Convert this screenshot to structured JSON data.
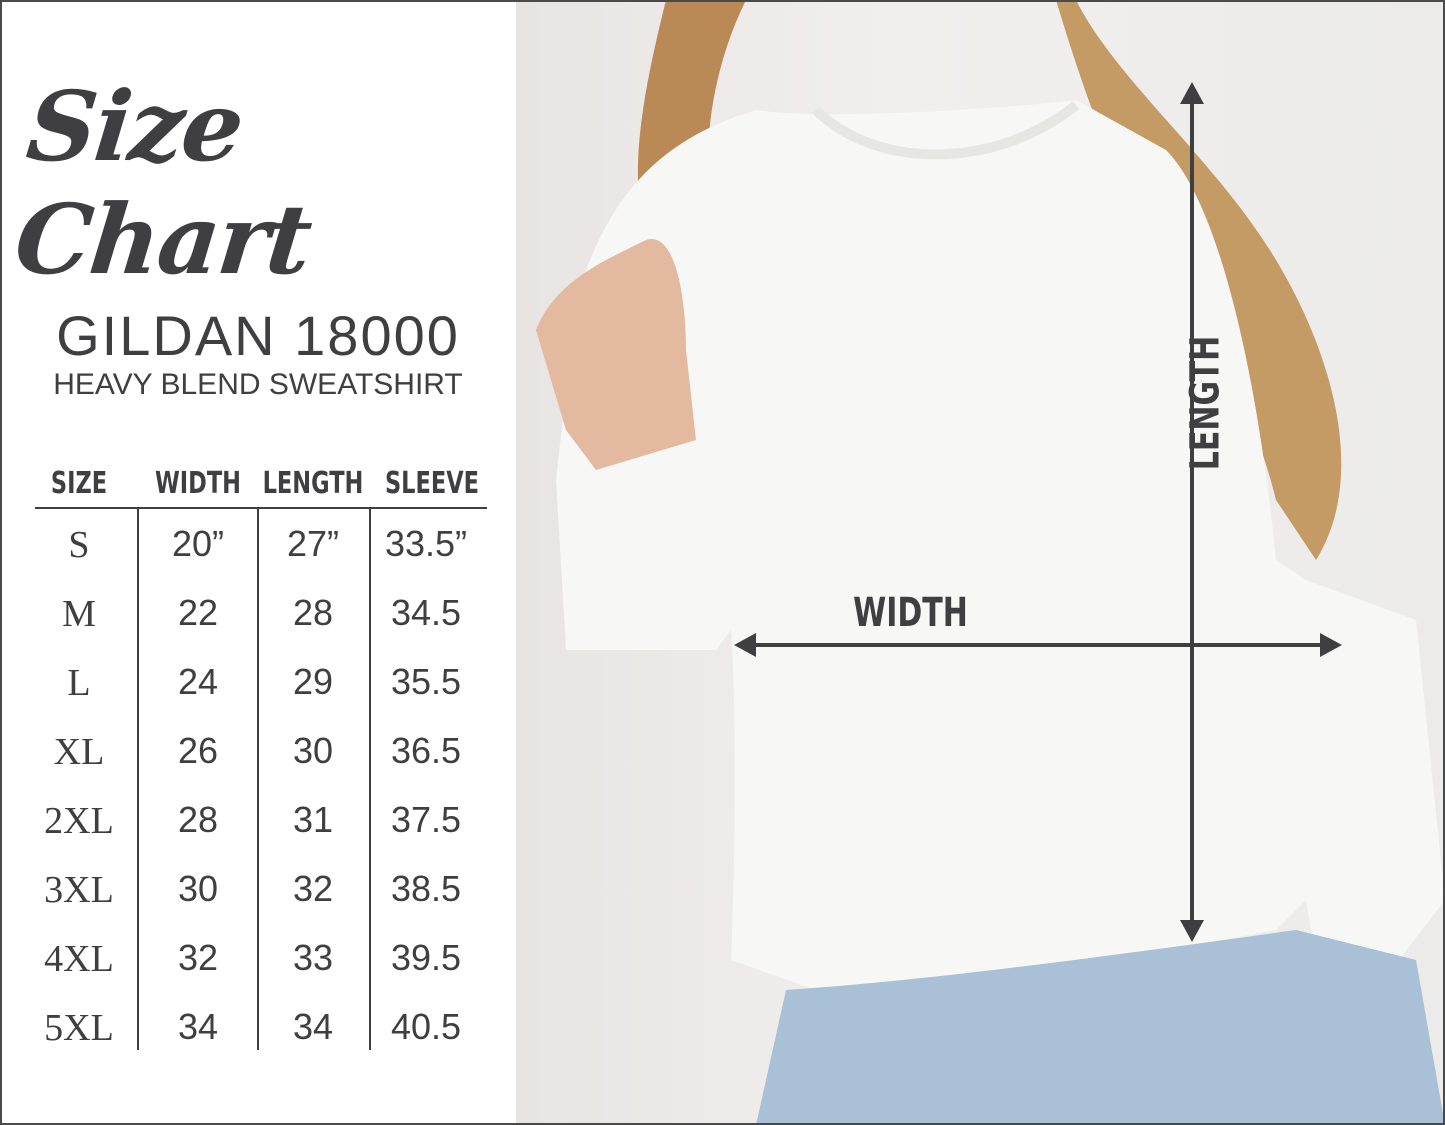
{
  "title": "Size Chart",
  "product": {
    "brand_model": "GILDAN 18000",
    "subtitle": "HEAVY BLEND SWEATSHIRT"
  },
  "table": {
    "headers": [
      "SIZE",
      "WIDTH",
      "LENGTH",
      "SLEEVE"
    ],
    "rows": [
      [
        "S",
        "20”",
        "27”",
        "33.5”"
      ],
      [
        "M",
        "22",
        "28",
        "34.5"
      ],
      [
        "L",
        "24",
        "29",
        "35.5"
      ],
      [
        "XL",
        "26",
        "30",
        "36.5"
      ],
      [
        "2XL",
        "28",
        "31",
        "37.5"
      ],
      [
        "3XL",
        "30",
        "32",
        "38.5"
      ],
      [
        "4XL",
        "32",
        "33",
        "39.5"
      ],
      [
        "5XL",
        "34",
        "34",
        "40.5"
      ]
    ]
  },
  "photo": {
    "length_label": "LENGTH",
    "width_label": "WIDTH"
  },
  "colors": {
    "text": "#3f3f41",
    "sweatshirt": "#f7f7f5",
    "jeans": "#a9c0d6",
    "hair": "#b98a55"
  }
}
